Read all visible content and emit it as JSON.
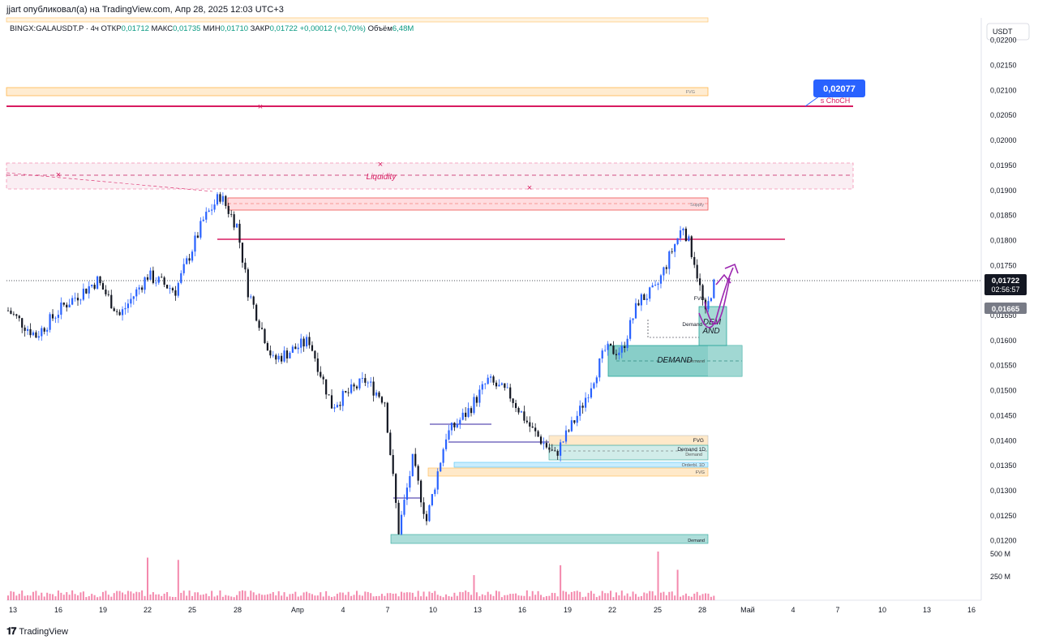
{
  "header": {
    "published_line": "jjart опубликовал(а) на TradingView.com, Апр 28, 2025 12:03 UTC+3"
  },
  "legend": {
    "symbol": "BINGX:GALAUSDT.P · 4ч",
    "open_label": "ОТКР",
    "open_value": "0,01712",
    "high_label": "МАКС",
    "high_value": "0,01735",
    "low_label": "МИН",
    "low_value": "0,01710",
    "close_label": "ЗАКР",
    "close_value": "0,01722",
    "change_value": "+0,00012 (+0,70%)",
    "volume_label": "Объём",
    "volume_value": "6,48M"
  },
  "price_axis": {
    "currency": "USDT",
    "ticks": [
      "0,02200",
      "0,02150",
      "0,02100",
      "0,02050",
      "0,02000",
      "0,01950",
      "0,01900",
      "0,01850",
      "0,01800",
      "0,01750",
      "0,01700",
      "0,01650",
      "0,01600",
      "0,01550",
      "0,01500",
      "0,01450",
      "0,01400",
      "0,01350",
      "0,01300",
      "0,01250",
      "0,01200"
    ],
    "current_price": "0,01722",
    "countdown": "02:56:57",
    "marker_price": "0,01665",
    "target_price": "0,02077"
  },
  "volume_axis": {
    "ticks": [
      "500 M",
      "250 M"
    ]
  },
  "time_axis": {
    "ticks": [
      "13",
      "16",
      "19",
      "22",
      "25",
      "28",
      "Апр",
      "4",
      "7",
      "10",
      "13",
      "16",
      "19",
      "22",
      "25",
      "28",
      "Май",
      "4",
      "7",
      "10",
      "13",
      "16"
    ]
  },
  "annotations": {
    "fvg_top": "FVG",
    "choch": "s ChoCH",
    "liquidity": "Liquidity",
    "supply": "Supply",
    "fvg_small": "FVG",
    "demand_small": "Demand",
    "dem_and": "DEM AND",
    "demand_box": "DEMAND",
    "demand_box_small": "Demand",
    "fvg_low": "FVG",
    "demand_1d": "Demand 1D",
    "demand_low": "Demand",
    "orderblock": "Orderbl. 1D",
    "fvg_bottom": "FVG",
    "demand_bottom": "Demand"
  },
  "footer": {
    "brand": "TradingView"
  },
  "colors": {
    "up": "#2962ff",
    "down": "#131722",
    "level_line": "#d81b60",
    "demand": "#26a69a",
    "supply": "#ef5350",
    "fvg": "#ffb74d",
    "projection": "#9c27b0",
    "volume": "#f06292"
  },
  "chart_data": {
    "type": "candlestick",
    "symbol": "BINGX:GALAUSDT.P",
    "timeframe": "4ч",
    "ylim": [
      0.0118,
      0.0224
    ],
    "last_close": 0.01722,
    "anchors": [
      {
        "x": 0,
        "y": 0.0166
      },
      {
        "x": 10,
        "y": 0.0161
      },
      {
        "x": 20,
        "y": 0.0167
      },
      {
        "x": 32,
        "y": 0.0172
      },
      {
        "x": 40,
        "y": 0.0165
      },
      {
        "x": 50,
        "y": 0.0173
      },
      {
        "x": 60,
        "y": 0.017
      },
      {
        "x": 70,
        "y": 0.0184
      },
      {
        "x": 76,
        "y": 0.0189
      },
      {
        "x": 82,
        "y": 0.0183
      },
      {
        "x": 86,
        "y": 0.017
      },
      {
        "x": 95,
        "y": 0.0156
      },
      {
        "x": 108,
        "y": 0.016
      },
      {
        "x": 116,
        "y": 0.0147
      },
      {
        "x": 128,
        "y": 0.0152
      },
      {
        "x": 135,
        "y": 0.0148
      },
      {
        "x": 140,
        "y": 0.0122
      },
      {
        "x": 145,
        "y": 0.0136
      },
      {
        "x": 150,
        "y": 0.0124
      },
      {
        "x": 157,
        "y": 0.0141
      },
      {
        "x": 165,
        "y": 0.0146
      },
      {
        "x": 172,
        "y": 0.0152
      },
      {
        "x": 180,
        "y": 0.0149
      },
      {
        "x": 188,
        "y": 0.0142
      },
      {
        "x": 196,
        "y": 0.0137
      },
      {
        "x": 205,
        "y": 0.0146
      },
      {
        "x": 214,
        "y": 0.0158
      },
      {
        "x": 220,
        "y": 0.0158
      },
      {
        "x": 226,
        "y": 0.0168
      },
      {
        "x": 232,
        "y": 0.017
      },
      {
        "x": 238,
        "y": 0.0178
      },
      {
        "x": 242,
        "y": 0.0183
      },
      {
        "x": 246,
        "y": 0.0176
      },
      {
        "x": 250,
        "y": 0.0165
      },
      {
        "x": 253,
        "y": 0.0172
      }
    ],
    "volume_spikes": [
      {
        "x": 50,
        "v": 560
      },
      {
        "x": 61,
        "v": 530
      },
      {
        "x": 167,
        "v": 330
      },
      {
        "x": 198,
        "v": 460
      },
      {
        "x": 233,
        "v": 640
      },
      {
        "x": 240,
        "v": 400
      }
    ],
    "levels": [
      {
        "label": "s ChoCH",
        "price": 0.02077
      },
      {
        "label": "",
        "price": 0.01807
      },
      {
        "label": "",
        "price": 0.01722
      }
    ],
    "zones": [
      {
        "label": "FVG",
        "from": 0.02097,
        "to": 0.02112
      },
      {
        "label": "Liquidity",
        "from": 0.0191,
        "to": 0.01962
      },
      {
        "label": "Supply",
        "from": 0.01872,
        "to": 0.01895
      },
      {
        "label": "DEMAND",
        "from": 0.01527,
        "to": 0.0159
      },
      {
        "label": "Demand 1D",
        "from": 0.01365,
        "to": 0.01385
      },
      {
        "label": "FVG",
        "from": 0.01385,
        "to": 0.01405
      },
      {
        "label": "Orderbl. 1D",
        "from": 0.01348,
        "to": 0.01356
      },
      {
        "label": "FVG",
        "from": 0.01325,
        "to": 0.01345
      },
      {
        "label": "Demand",
        "from": 0.0119,
        "to": 0.0121
      }
    ]
  }
}
